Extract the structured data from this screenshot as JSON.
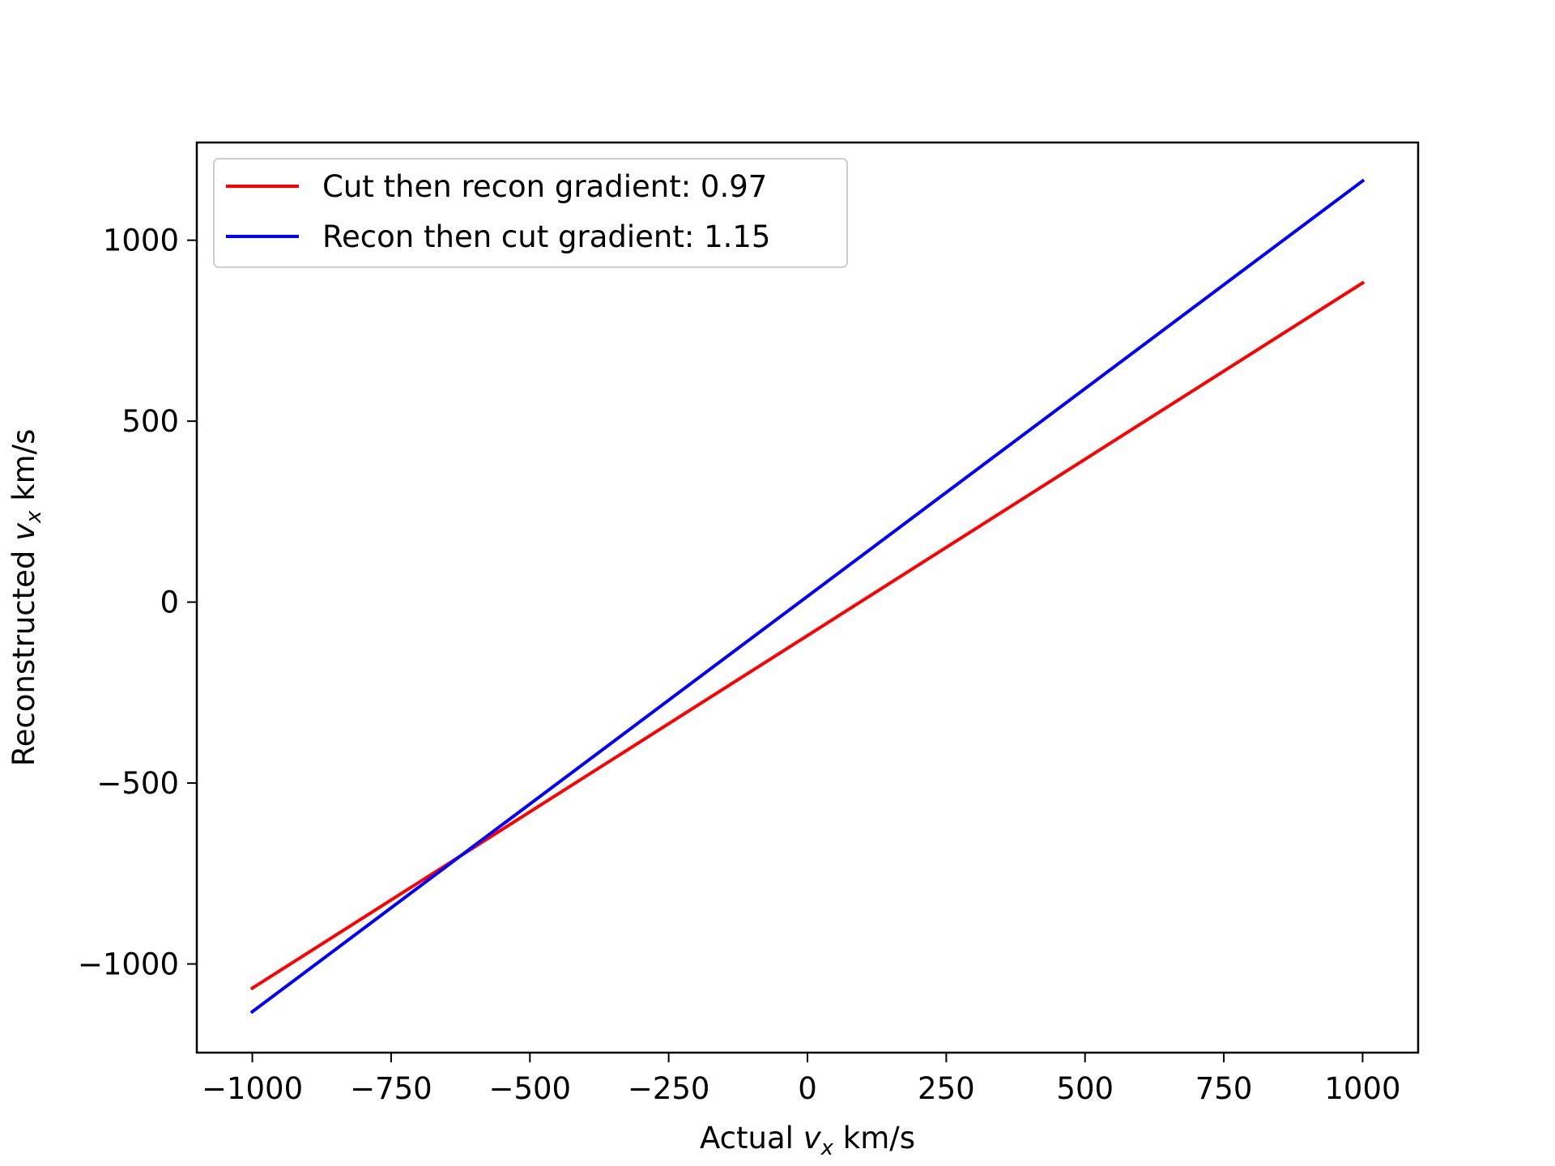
{
  "chart_data": {
    "type": "line",
    "xlabel": {
      "prefix": "Actual ",
      "var": "v",
      "sub": "x",
      "suffix": " km/s"
    },
    "ylabel": {
      "prefix": "Reconstructed ",
      "var": "v",
      "sub": "x",
      "suffix": " km/s"
    },
    "xlim": [
      -1100,
      1100
    ],
    "ylim": [
      -1245,
      1270
    ],
    "x_ticks": [
      {
        "value": -1000,
        "label": "−1000"
      },
      {
        "value": -750,
        "label": "−750"
      },
      {
        "value": -500,
        "label": "−500"
      },
      {
        "value": -250,
        "label": "−250"
      },
      {
        "value": 0,
        "label": "0"
      },
      {
        "value": 250,
        "label": "250"
      },
      {
        "value": 500,
        "label": "500"
      },
      {
        "value": 750,
        "label": "750"
      },
      {
        "value": 1000,
        "label": "1000"
      }
    ],
    "y_ticks": [
      {
        "value": -1000,
        "label": "−1000"
      },
      {
        "value": -500,
        "label": "−500"
      },
      {
        "value": 0,
        "label": "0"
      },
      {
        "value": 500,
        "label": "500"
      },
      {
        "value": 1000,
        "label": "1000"
      }
    ],
    "grid": false,
    "legend_position": "top-left",
    "series": [
      {
        "name": "Cut then recon gradient: 0.97",
        "color": "#ff0000",
        "x": [
          -1000,
          1000
        ],
        "y": [
          -1067,
          882
        ]
      },
      {
        "name": "Recon then cut gradient: 1.15",
        "color": "#0000ff",
        "x": [
          -1000,
          1000
        ],
        "y": [
          -1132,
          1164
        ]
      }
    ]
  }
}
